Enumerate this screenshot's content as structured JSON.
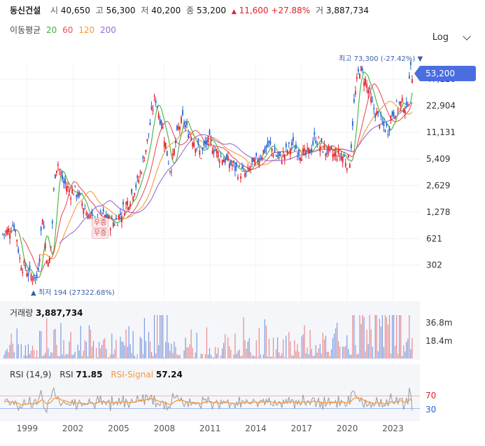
{
  "header": {
    "name": "동신건설",
    "open_label": "시",
    "open": "40,650",
    "high_label": "고",
    "high": "56,300",
    "low_label": "저",
    "low": "40,200",
    "close_label": "종",
    "close": "53,200",
    "change_arrow": "▲",
    "change": "11,600",
    "change_pct": "+27.88%",
    "volume_label": "거",
    "volume": "3,887,734"
  },
  "ma_legend": {
    "label": "이동평균",
    "p20": "20",
    "p60": "60",
    "p120": "120",
    "p200": "200",
    "colors": {
      "p20": "#3fb33f",
      "p60": "#e8545a",
      "p120": "#f39a3c",
      "p200": "#9a6ad8"
    }
  },
  "scale_selector": {
    "value": "Log",
    "icon": "chevron-down-icon"
  },
  "price_axis": {
    "ticks": [
      "47,120",
      "22,904",
      "11,131",
      "5,409",
      "2,629",
      "1,278",
      "621",
      "302"
    ],
    "current_price": "53,200"
  },
  "annotations": {
    "high_label": "최고",
    "high_value": "73,300",
    "high_pct": "(-27.42%)",
    "high_marker": "▼",
    "low_label": "최저",
    "low_value": "194",
    "low_pct": "(27322.68%)",
    "low_marker": "▲",
    "badge_top": "우증",
    "badge_bottom": "무증"
  },
  "volume_panel": {
    "label": "거래량",
    "value": "3,887,734",
    "ticks": [
      "36.8m",
      "18.4m"
    ]
  },
  "rsi_panel": {
    "label": "RSI (14,9)",
    "rsi_label": "RSI",
    "rsi_value": "71.85",
    "signal_label": "RSI-Signal",
    "signal_value": "57.24",
    "upper": "70",
    "lower": "30"
  },
  "x_axis": {
    "ticks": [
      "1999",
      "2002",
      "2005",
      "2008",
      "2011",
      "2014",
      "2017",
      "2020",
      "2023"
    ]
  },
  "colors": {
    "up": "#e0202a",
    "down": "#2463d6",
    "accent": "#4a6ee0",
    "rsi": "#9a9a9a",
    "rsi_signal": "#f39a3c"
  },
  "chart_data": {
    "type": "candlestick",
    "scale": "log",
    "x_range": [
      1997.6,
      2024.6
    ],
    "y_range_price": [
      194,
      73300
    ],
    "price_path": [
      [
        1997.6,
        700
      ],
      [
        1998.0,
        780
      ],
      [
        1998.3,
        950
      ],
      [
        1998.5,
        700
      ],
      [
        1998.7,
        360
      ],
      [
        1998.9,
        300
      ],
      [
        1999.1,
        280
      ],
      [
        1999.3,
        240
      ],
      [
        1999.5,
        230
      ],
      [
        1999.7,
        220
      ],
      [
        1999.8,
        194
      ],
      [
        2000.0,
        400
      ],
      [
        2000.2,
        1200
      ],
      [
        2000.4,
        520
      ],
      [
        2000.6,
        270
      ],
      [
        2000.8,
        600
      ],
      [
        2001.0,
        3500
      ],
      [
        2001.2,
        5000
      ],
      [
        2001.4,
        3500
      ],
      [
        2001.6,
        2800
      ],
      [
        2001.8,
        2600
      ],
      [
        2002.0,
        2200
      ],
      [
        2002.3,
        2300
      ],
      [
        2002.6,
        2000
      ],
      [
        2002.9,
        1500
      ],
      [
        2003.2,
        1200
      ],
      [
        2003.5,
        1000
      ],
      [
        2003.8,
        900
      ],
      [
        2004.1,
        1200
      ],
      [
        2004.4,
        1100
      ],
      [
        2004.7,
        950
      ],
      [
        2005.0,
        1000
      ],
      [
        2005.3,
        1200
      ],
      [
        2005.6,
        1500
      ],
      [
        2005.9,
        1800
      ],
      [
        2006.2,
        2400
      ],
      [
        2006.5,
        3000
      ],
      [
        2006.8,
        5000
      ],
      [
        2007.1,
        9000
      ],
      [
        2007.4,
        20000
      ],
      [
        2007.6,
        30000
      ],
      [
        2007.8,
        20000
      ],
      [
        2008.0,
        15000
      ],
      [
        2008.2,
        10000
      ],
      [
        2008.4,
        6000
      ],
      [
        2008.6,
        4000
      ],
      [
        2008.8,
        6000
      ],
      [
        2009.1,
        12000
      ],
      [
        2009.4,
        16000
      ],
      [
        2009.7,
        12000
      ],
      [
        2010.0,
        10000
      ],
      [
        2010.3,
        8000
      ],
      [
        2010.6,
        6000
      ],
      [
        2010.9,
        8000
      ],
      [
        2011.2,
        9000
      ],
      [
        2011.5,
        7000
      ],
      [
        2011.8,
        6000
      ],
      [
        2012.1,
        5500
      ],
      [
        2012.4,
        5000
      ],
      [
        2012.7,
        4500
      ],
      [
        2013.0,
        4000
      ],
      [
        2013.3,
        3800
      ],
      [
        2013.6,
        3500
      ],
      [
        2013.9,
        4500
      ],
      [
        2014.2,
        5000
      ],
      [
        2014.5,
        6000
      ],
      [
        2014.8,
        7000
      ],
      [
        2015.1,
        8000
      ],
      [
        2015.4,
        6500
      ],
      [
        2015.7,
        5500
      ],
      [
        2016.0,
        6000
      ],
      [
        2016.3,
        7000
      ],
      [
        2016.6,
        8000
      ],
      [
        2016.9,
        7000
      ],
      [
        2017.2,
        6500
      ],
      [
        2017.5,
        6000
      ],
      [
        2017.8,
        7000
      ],
      [
        2018.1,
        10000
      ],
      [
        2018.4,
        8000
      ],
      [
        2018.7,
        7000
      ],
      [
        2019.0,
        6500
      ],
      [
        2019.3,
        6000
      ],
      [
        2019.6,
        6200
      ],
      [
        2019.9,
        5800
      ],
      [
        2020.2,
        5000
      ],
      [
        2020.4,
        5500
      ],
      [
        2020.6,
        20000
      ],
      [
        2020.8,
        40000
      ],
      [
        2021.0,
        65000
      ],
      [
        2021.2,
        55000
      ],
      [
        2021.4,
        45000
      ],
      [
        2021.6,
        35000
      ],
      [
        2021.8,
        25000
      ],
      [
        2022.0,
        20000
      ],
      [
        2022.3,
        16000
      ],
      [
        2022.6,
        13000
      ],
      [
        2022.9,
        12000
      ],
      [
        2023.1,
        18000
      ],
      [
        2023.4,
        22000
      ],
      [
        2023.7,
        24000
      ],
      [
        2023.9,
        25000
      ],
      [
        2024.1,
        20000
      ],
      [
        2024.2,
        30000
      ],
      [
        2024.3,
        73300
      ],
      [
        2024.4,
        53200
      ]
    ],
    "ma_lines": [
      "20",
      "60",
      "120",
      "200"
    ],
    "volume_max": 36800000,
    "rsi_levels": [
      30,
      70
    ]
  }
}
